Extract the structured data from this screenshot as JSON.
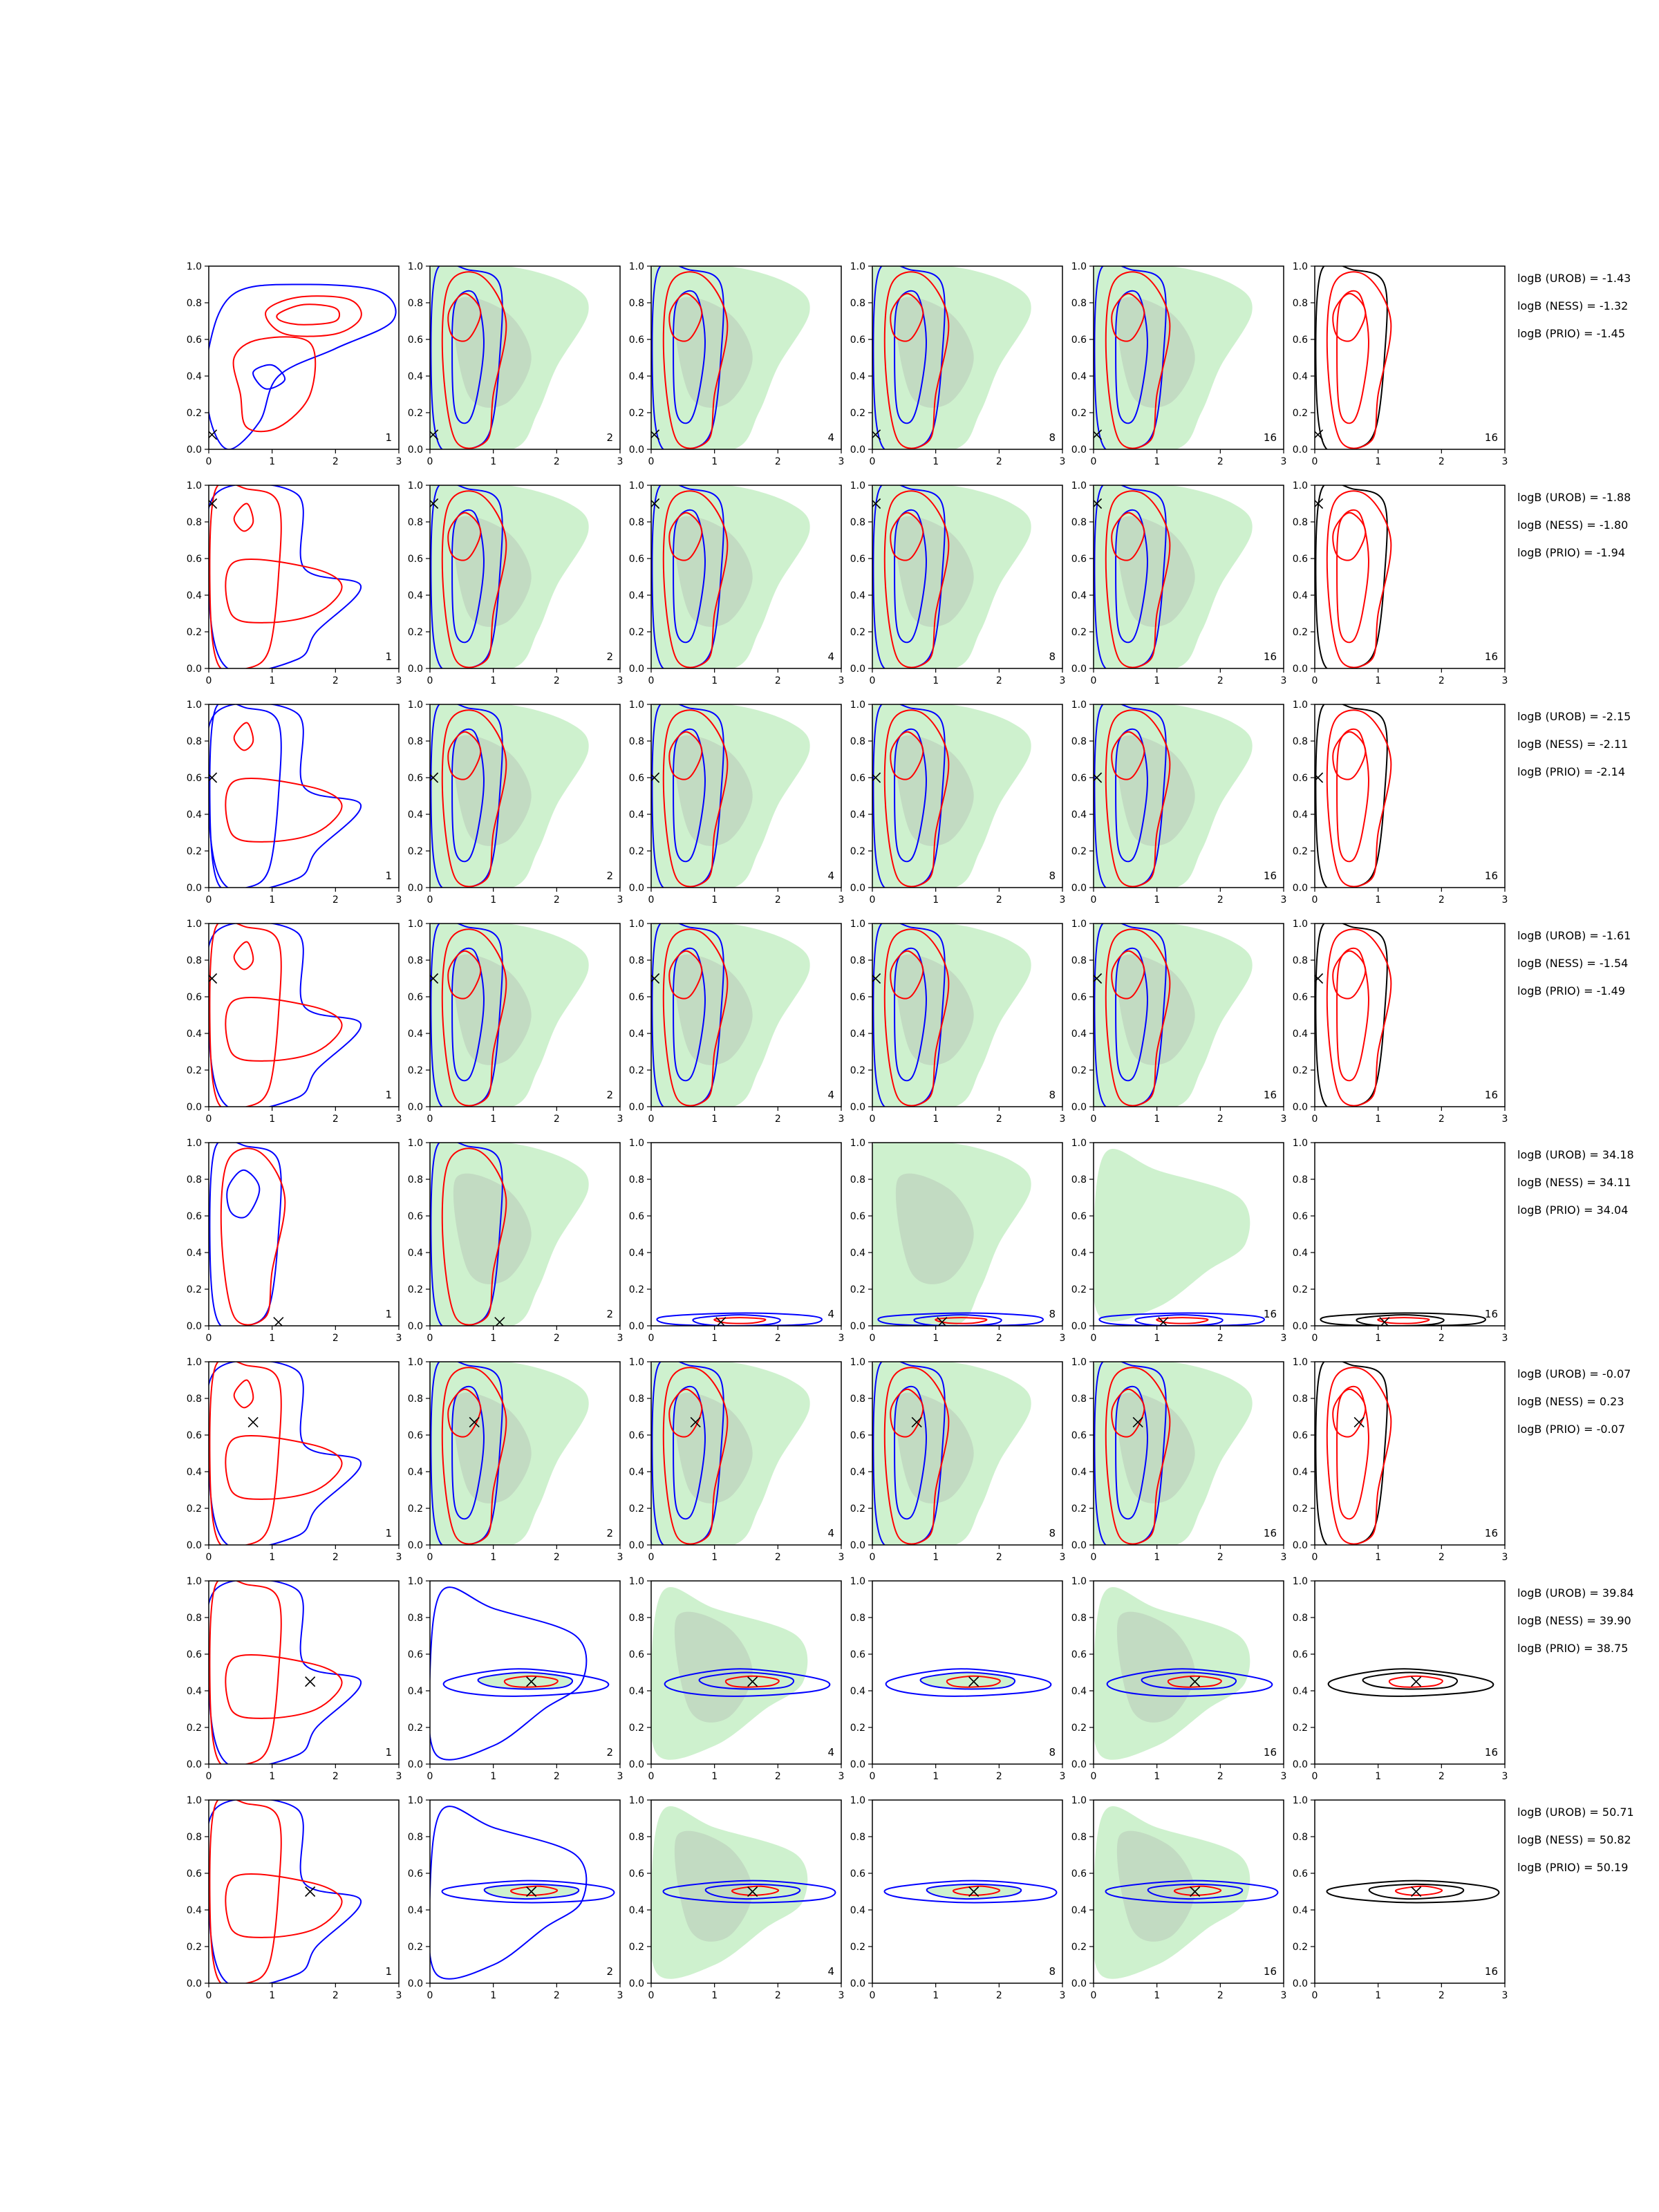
{
  "figure": {
    "title": "",
    "columns": [
      "1",
      "2",
      "4",
      "8",
      "16",
      "16"
    ],
    "x_ticks": [
      "0",
      "1",
      "2",
      "3"
    ],
    "y_ticks": [
      "0.0",
      "0.2",
      "0.4",
      "0.6",
      "0.8",
      "1.0"
    ]
  },
  "colors": {
    "red": "#ff0000",
    "blue": "#0000ff",
    "black": "#000000",
    "green_fill": "#c9efc9",
    "gray_fill": "#b8c8b8"
  },
  "chart_data": {
    "type": "contour",
    "grid_rows": 8,
    "grid_cols": 6,
    "xlim": [
      0,
      3
    ],
    "ylim": [
      0,
      1
    ],
    "panel_labels": [
      "1",
      "2",
      "4",
      "8",
      "16",
      "16"
    ],
    "series": [
      {
        "color": "red",
        "kind": "contour"
      },
      {
        "color": "blue",
        "kind": "contour"
      },
      {
        "color": "black",
        "kind": "contour",
        "columns": [
          6
        ]
      },
      {
        "color": "green",
        "kind": "filled contour",
        "columns": [
          2,
          3,
          4,
          5
        ]
      }
    ],
    "rows": [
      {
        "true_point": {
          "x": 0.05,
          "y": 0.08
        },
        "logB": {
          "UROB": "logB (UROB) = -1.43",
          "NESS": "logB (NESS) = -1.32",
          "PRIO": "logB (PRIO) = -1.45"
        }
      },
      {
        "true_point": {
          "x": 0.05,
          "y": 0.9
        },
        "logB": {
          "UROB": "logB (UROB) = -1.88",
          "NESS": "logB (NESS) = -1.80",
          "PRIO": "logB (PRIO) = -1.94"
        }
      },
      {
        "true_point": {
          "x": 0.05,
          "y": 0.6
        },
        "logB": {
          "UROB": "logB (UROB) = -2.15",
          "NESS": "logB (NESS) = -2.11",
          "PRIO": "logB (PRIO) = -2.14"
        }
      },
      {
        "true_point": {
          "x": 0.05,
          "y": 0.7
        },
        "logB": {
          "UROB": "logB (UROB) = -1.61",
          "NESS": "logB (NESS) = -1.54",
          "PRIO": "logB (PRIO) = -1.49"
        }
      },
      {
        "true_point": {
          "x": 1.1,
          "y": 0.02
        },
        "logB": {
          "UROB": "logB (UROB) = 34.18",
          "NESS": "logB (NESS) = 34.11",
          "PRIO": "logB (PRIO) = 34.04"
        }
      },
      {
        "true_point": {
          "x": 0.7,
          "y": 0.67
        },
        "logB": {
          "UROB": "logB (UROB) = -0.07",
          "NESS": "logB (NESS) = 0.23",
          "PRIO": "logB (PRIO) = -0.07"
        }
      },
      {
        "true_point": {
          "x": 1.6,
          "y": 0.45
        },
        "logB": {
          "UROB": "logB (UROB) = 39.84",
          "NESS": "logB (NESS) = 39.90",
          "PRIO": "logB (PRIO) = 38.75"
        }
      },
      {
        "true_point": {
          "x": 1.6,
          "y": 0.5
        },
        "logB": {
          "UROB": "logB (UROB) = 50.71",
          "NESS": "logB (NESS) = 50.82",
          "PRIO": "logB (PRIO) = 50.19"
        }
      }
    ]
  }
}
